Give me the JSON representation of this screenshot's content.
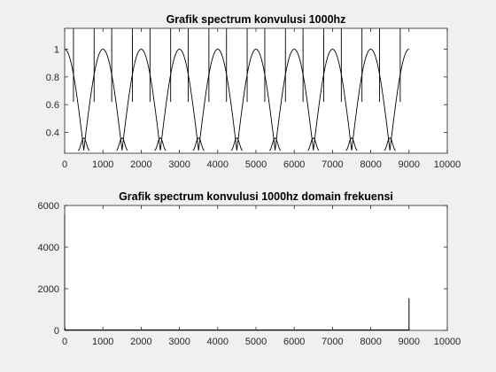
{
  "chart_data": [
    {
      "type": "line",
      "title": "Grafik spectrum konvulusi 1000hz",
      "xlabel": "",
      "ylabel": "",
      "xlim": [
        0,
        10000
      ],
      "ylim": [
        0.25,
        1.15
      ],
      "x_ticks": [
        0,
        1000,
        2000,
        3000,
        4000,
        5000,
        6000,
        7000,
        8000,
        9000,
        10000
      ],
      "y_ticks": [
        0.4,
        0.6,
        0.8,
        1
      ],
      "grid": false,
      "series": [
        {
          "period": 1000,
          "x_end": 9000,
          "peak_value": 1.0,
          "min_value": 0.27,
          "x": [
            0,
            100,
            200,
            300,
            400,
            500,
            600,
            700,
            800,
            900,
            1000,
            1100,
            1200,
            1300,
            1400,
            1500,
            1600,
            1700,
            1800,
            1900,
            2000,
            2100,
            2200,
            2300,
            2400,
            2500,
            2600,
            2700,
            2800,
            2900,
            3000,
            3100,
            3200,
            3300,
            3400,
            3500,
            3600,
            3700,
            3800,
            3900,
            4000,
            4100,
            4200,
            4300,
            4400,
            4500,
            4600,
            4700,
            4800,
            4900,
            5000,
            5100,
            5200,
            5300,
            5400,
            5500,
            5600,
            5700,
            5800,
            5900,
            6000,
            6100,
            6200,
            6300,
            6400,
            6500,
            6600,
            6700,
            6800,
            6900,
            7000,
            7100,
            7200,
            7300,
            7400,
            7500,
            7600,
            7700,
            7800,
            7900,
            8000,
            8100,
            8200,
            8300,
            8400,
            8500,
            8600,
            8700,
            8800,
            8900,
            9000
          ],
          "y": [
            1.0,
            0.93,
            0.74,
            0.46,
            0.31,
            0.27,
            0.31,
            0.46,
            0.74,
            0.93,
            1.0,
            0.93,
            0.74,
            0.46,
            0.31,
            0.27,
            0.31,
            0.46,
            0.74,
            0.93,
            1.0,
            0.93,
            0.74,
            0.46,
            0.31,
            0.27,
            0.31,
            0.46,
            0.74,
            0.93,
            1.0,
            0.93,
            0.74,
            0.46,
            0.31,
            0.27,
            0.31,
            0.46,
            0.74,
            0.93,
            1.0,
            0.93,
            0.74,
            0.46,
            0.31,
            0.27,
            0.31,
            0.46,
            0.74,
            0.93,
            1.0,
            0.93,
            0.74,
            0.46,
            0.31,
            0.27,
            0.31,
            0.46,
            0.74,
            0.93,
            1.0,
            0.93,
            0.74,
            0.46,
            0.31,
            0.27,
            0.31,
            0.46,
            0.74,
            0.93,
            1.0,
            0.93,
            0.74,
            0.46,
            0.31,
            0.27,
            0.31,
            0.46,
            0.74,
            0.93,
            1.0,
            0.93,
            0.74,
            0.46,
            0.31,
            0.27,
            0.31,
            0.46,
            0.74,
            0.93,
            1.0
          ]
        }
      ],
      "vertical_lines_x": [
        230,
        770,
        1230,
        1770,
        2230,
        2770,
        3230,
        3770,
        4230,
        4770,
        5230,
        5770,
        6230,
        6770,
        7230,
        7770,
        8230,
        8770
      ]
    },
    {
      "type": "line",
      "title": "Grafik spectrum konvulusi 1000hz domain frekuensi",
      "xlabel": "",
      "ylabel": "",
      "xlim": [
        0,
        10000
      ],
      "ylim": [
        0,
        6000
      ],
      "x_ticks": [
        0,
        1000,
        2000,
        3000,
        4000,
        5000,
        6000,
        7000,
        8000,
        9000,
        10000
      ],
      "y_ticks": [
        0,
        2000,
        4000,
        6000
      ],
      "grid": false,
      "series": [
        {
          "x": [
            0,
            0,
            20,
            8980,
            9000,
            9000,
            9000
          ],
          "y": [
            5600,
            150,
            20,
            20,
            60,
            1550,
            0
          ]
        }
      ]
    }
  ]
}
